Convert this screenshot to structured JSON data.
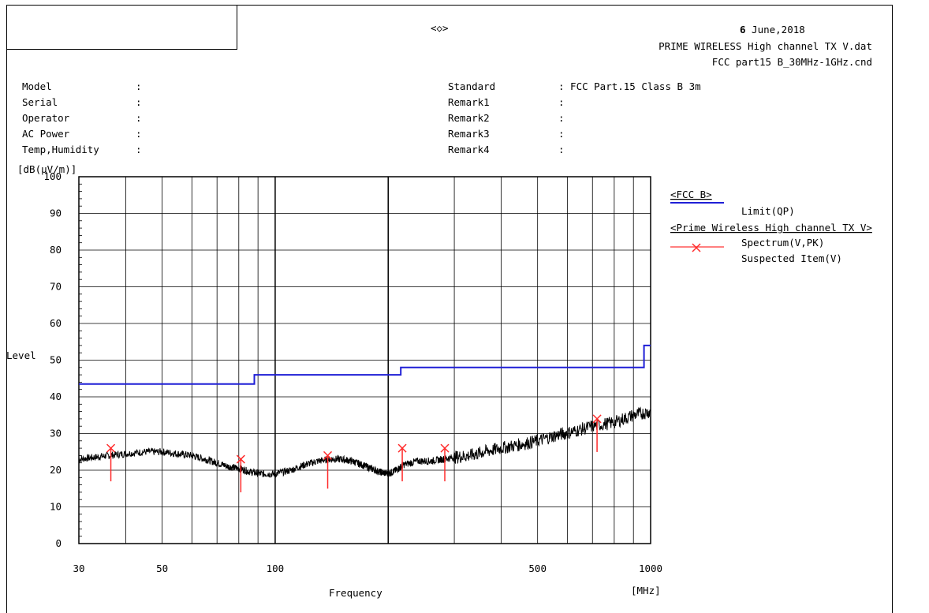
{
  "header": {
    "center_mark": "<◇>",
    "date_day": "6",
    "date_rest": " June,2018",
    "file1": "PRIME WIRELESS High channel TX V.dat",
    "file2": "FCC part15 B_30MHz-1GHz.cnd"
  },
  "meta_left": [
    {
      "label": "Model",
      "value": ""
    },
    {
      "label": "Serial",
      "value": ""
    },
    {
      "label": "Operator",
      "value": ""
    },
    {
      "label": "AC Power",
      "value": ""
    },
    {
      "label": "Temp,Humidity",
      "value": ""
    }
  ],
  "meta_right": [
    {
      "label": "Standard",
      "value": "FCC Part.15 Class B 3m"
    },
    {
      "label": "Remark1",
      "value": ""
    },
    {
      "label": "Remark2",
      "value": ""
    },
    {
      "label": "Remark3",
      "value": ""
    },
    {
      "label": "Remark4",
      "value": ""
    }
  ],
  "legend": {
    "group1": "<FCC B>",
    "limit_label": "Limit(QP)",
    "group2": "<Prime Wireless High channel TX V>",
    "spectrum_label": "Spectrum(V,PK)",
    "suspected_label": "Suspected Item(V)"
  },
  "colors": {
    "limit": "#1f1fd6",
    "spectrum": "#000000",
    "suspected": "#ff2a2a",
    "grid": "#000000"
  },
  "chart_data": {
    "type": "line",
    "x_scale": "log",
    "xlim": [
      30,
      1000
    ],
    "ylim": [
      0,
      100
    ],
    "xlabel": "Frequency",
    "x_unit": "[MHz]",
    "ylabel": "Level",
    "y_unit": "[dB(μV/m)]",
    "x_ticks": [
      {
        "value": 30,
        "label": "30"
      },
      {
        "value": 50,
        "label": "50"
      },
      {
        "value": 100,
        "label": "100"
      },
      {
        "value": 500,
        "label": "500"
      },
      {
        "value": 1000,
        "label": "1000"
      }
    ],
    "y_ticks": [
      0,
      10,
      20,
      30,
      40,
      50,
      60,
      70,
      80,
      90,
      100
    ],
    "series": [
      {
        "name": "Limit(QP)",
        "kind": "step",
        "points": [
          [
            30,
            43.5
          ],
          [
            88,
            43.5
          ],
          [
            88,
            46
          ],
          [
            216,
            46
          ],
          [
            216,
            48
          ],
          [
            960,
            48
          ],
          [
            960,
            54
          ],
          [
            1000,
            54
          ]
        ]
      },
      {
        "name": "Spectrum(V,PK)",
        "kind": "line",
        "points": [
          [
            30,
            23
          ],
          [
            33,
            23.5
          ],
          [
            36,
            24
          ],
          [
            40,
            24.5
          ],
          [
            45,
            25
          ],
          [
            50,
            25
          ],
          [
            55,
            24.5
          ],
          [
            60,
            24
          ],
          [
            65,
            23
          ],
          [
            70,
            22
          ],
          [
            75,
            21
          ],
          [
            80,
            20.5
          ],
          [
            86,
            19.5
          ],
          [
            92,
            19
          ],
          [
            100,
            19
          ],
          [
            110,
            20
          ],
          [
            120,
            21.5
          ],
          [
            130,
            22.5
          ],
          [
            140,
            23
          ],
          [
            150,
            23
          ],
          [
            160,
            22.5
          ],
          [
            170,
            21.5
          ],
          [
            180,
            20.5
          ],
          [
            190,
            19.5
          ],
          [
            200,
            19
          ],
          [
            210,
            20
          ],
          [
            220,
            21.5
          ],
          [
            240,
            22.5
          ],
          [
            260,
            22.5
          ],
          [
            280,
            23
          ],
          [
            300,
            23.5
          ],
          [
            330,
            24
          ],
          [
            360,
            25
          ],
          [
            400,
            26
          ],
          [
            450,
            27
          ],
          [
            500,
            28
          ],
          [
            560,
            29.5
          ],
          [
            620,
            30.5
          ],
          [
            700,
            32
          ],
          [
            800,
            33
          ],
          [
            900,
            35
          ],
          [
            1000,
            36
          ]
        ]
      }
    ],
    "suspected_items": [
      {
        "freq": 36.5,
        "level": 26
      },
      {
        "freq": 81,
        "level": 23
      },
      {
        "freq": 138,
        "level": 24
      },
      {
        "freq": 218,
        "level": 26
      },
      {
        "freq": 283,
        "level": 26
      },
      {
        "freq": 720,
        "level": 34
      }
    ]
  }
}
